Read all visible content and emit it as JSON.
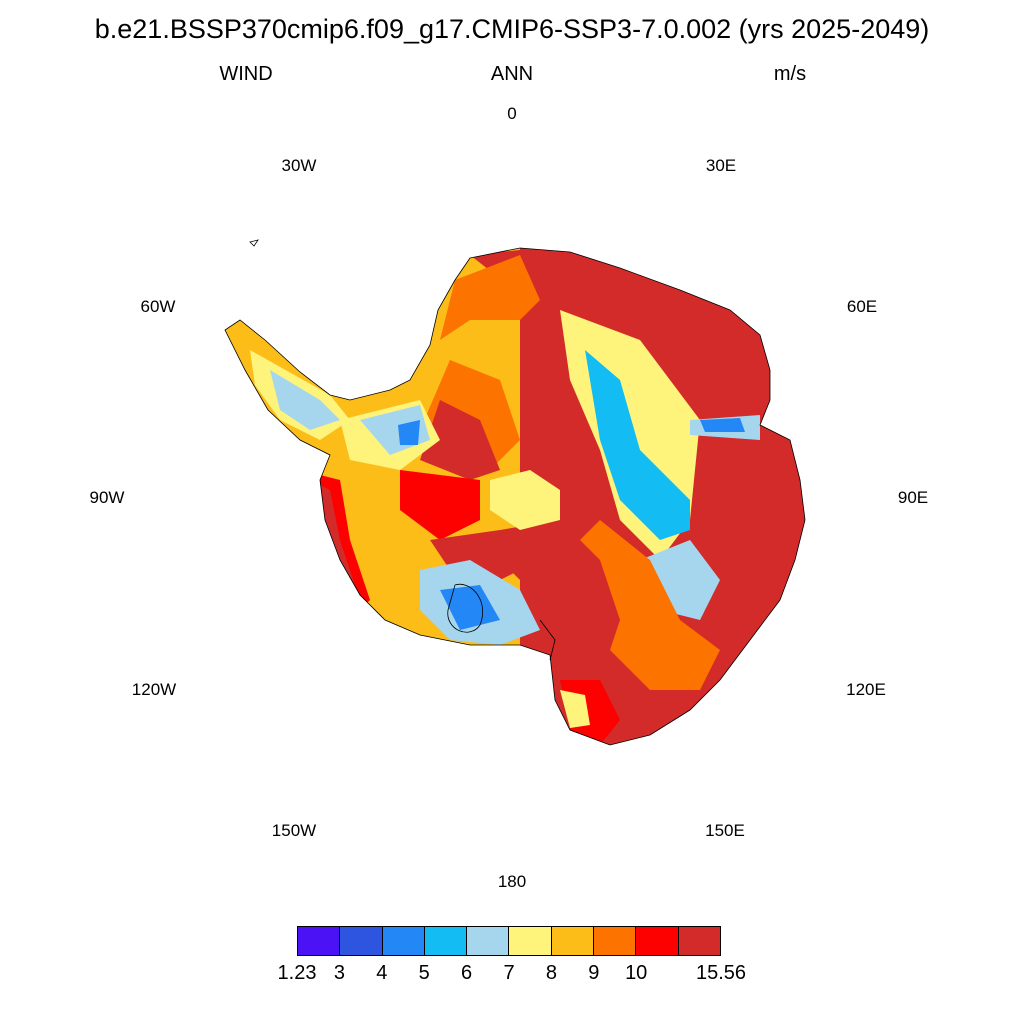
{
  "header": {
    "title": "b.e21.BSSP370cmip6.f09_g17.CMIP6-SSP3-7.0.002 (yrs 2025-2049)",
    "variable": "WIND",
    "season": "ANN",
    "units": "m/s"
  },
  "map": {
    "projection": "south-polar-stereographic",
    "region": "Antarctica",
    "longitude_labels": [
      "0",
      "30E",
      "60E",
      "90E",
      "120E",
      "150E",
      "180",
      "150W",
      "120W",
      "90W",
      "60W",
      "30W"
    ]
  },
  "colorbar": {
    "colors": [
      "#4b12f5",
      "#2d55e0",
      "#2387f5",
      "#13bcf2",
      "#a5d6ee",
      "#fef47b",
      "#fcbd18",
      "#fd7300",
      "#fd0000",
      "#d32a2a"
    ],
    "labels": [
      "1.23",
      "3",
      "4",
      "5",
      "6",
      "7",
      "8",
      "9",
      "10",
      "15.56"
    ]
  }
}
